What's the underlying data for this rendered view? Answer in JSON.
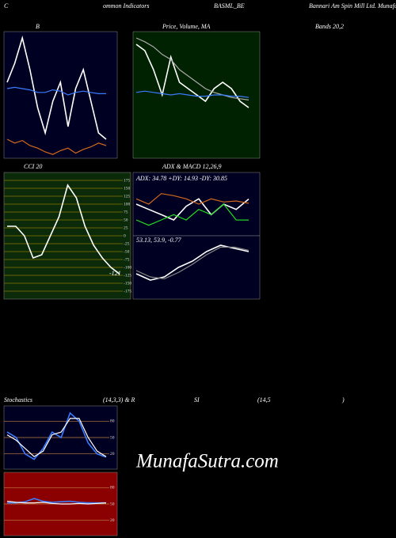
{
  "header": [
    "C",
    "ommon Indicators",
    "BASML_BE",
    "Bannari Am Spin Mill Ltd. MunafaSutra.com"
  ],
  "subheader": [
    "B",
    "Price, Volume, MA",
    "Bands 20,2"
  ],
  "stoch_header": [
    "Stochastics",
    "(14,3,3) & R",
    "SI",
    "(14,5",
    ")"
  ],
  "watermark": "MunafaSutra.com",
  "chart_data": [
    {
      "type": "line",
      "background": "#000022",
      "ylim": [
        0,
        100
      ],
      "series": [
        {
          "color": "#ffffff",
          "values": [
            60,
            75,
            95,
            70,
            40,
            20,
            45,
            60,
            25,
            55,
            70,
            45,
            20,
            15
          ]
        },
        {
          "color": "#3b7bff",
          "values": [
            55,
            56,
            55,
            54,
            52,
            52,
            54,
            53,
            50,
            52,
            53,
            52,
            51,
            51
          ]
        },
        {
          "color": "#d2691e",
          "values": [
            15,
            12,
            14,
            10,
            8,
            5,
            3,
            6,
            8,
            4,
            7,
            9,
            12,
            10
          ]
        }
      ]
    },
    {
      "type": "line",
      "background": "#002200",
      "ylim": [
        0,
        100
      ],
      "series": [
        {
          "color": "#ffffff",
          "values": [
            90,
            85,
            70,
            50,
            80,
            60,
            55,
            50,
            45,
            55,
            60,
            55,
            45,
            40
          ]
        },
        {
          "color": "#aaaaaa",
          "values": [
            95,
            92,
            88,
            82,
            78,
            70,
            65,
            60,
            55,
            52,
            50,
            48,
            47,
            46
          ]
        },
        {
          "color": "#3b7bff",
          "values": [
            52,
            53,
            52,
            51,
            50,
            51,
            50,
            49,
            49,
            50,
            50,
            49,
            49,
            48
          ]
        }
      ]
    },
    {
      "type": "line",
      "title": "CCI 20",
      "background": "#0a2a0a",
      "grid_color": "#8b7500",
      "ylim": [
        -200,
        200
      ],
      "yticks": [
        175,
        150,
        125,
        100,
        75,
        50,
        25,
        0,
        -25,
        -50,
        -75,
        -100,
        -125,
        -150,
        -175
      ],
      "annotations": [
        "-121"
      ],
      "series": [
        {
          "color": "#ffffff",
          "values": [
            30,
            30,
            0,
            -70,
            -60,
            0,
            60,
            160,
            120,
            30,
            -30,
            -70,
            -100,
            -121
          ]
        }
      ]
    },
    {
      "type": "line",
      "title": "ADX  & MACD 12,26,9",
      "background": "#000022",
      "ylim": [
        0,
        60
      ],
      "annotations": [
        "ADX: 34.78  +DY: 14.93 -DY: 30.85"
      ],
      "series": [
        {
          "color": "#ffffff",
          "values": [
            30,
            25,
            20,
            15,
            28,
            35,
            20,
            30,
            25,
            34.78
          ]
        },
        {
          "color": "#22dd22",
          "values": [
            15,
            10,
            15,
            20,
            15,
            25,
            20,
            30,
            15,
            14.93
          ]
        },
        {
          "color": "#d2691e",
          "values": [
            35,
            30,
            40,
            38,
            35,
            30,
            35,
            32,
            33,
            30.85
          ]
        }
      ]
    },
    {
      "type": "line",
      "background": "#000022",
      "ylim": [
        -80,
        20
      ],
      "annotations": [
        "53.13, 53.9, -0.77"
      ],
      "series": [
        {
          "color": "#ffffff",
          "values": [
            -40,
            -50,
            -45,
            -30,
            -20,
            -5,
            5,
            0,
            -5
          ]
        },
        {
          "color": "#888888",
          "values": [
            -35,
            -45,
            -48,
            -38,
            -25,
            -10,
            2,
            2,
            -3
          ]
        }
      ]
    },
    {
      "type": "line",
      "background": "#000022",
      "grid_color": "#c08040",
      "ylim": [
        -8,
        108
      ],
      "yticks": [
        80,
        50,
        20
      ],
      "series": [
        {
          "color": "#3b7bff",
          "values": [
            60,
            50,
            20,
            10,
            30,
            60,
            50,
            95,
            80,
            40,
            20,
            14
          ]
        },
        {
          "color": "#ffffff",
          "values": [
            55,
            45,
            30,
            15,
            25,
            55,
            60,
            85,
            85,
            50,
            25,
            15
          ]
        }
      ]
    },
    {
      "type": "line",
      "background": "#8b0000",
      "grid_color": "#c08040",
      "ylim": [
        -8,
        108
      ],
      "yticks": [
        80,
        50,
        20
      ],
      "series": [
        {
          "color": "#3b7bff",
          "values": [
            52,
            52,
            54,
            60,
            55,
            53,
            54,
            55,
            53,
            52,
            52,
            52
          ]
        },
        {
          "color": "#ffffff",
          "values": [
            55,
            53,
            52,
            52,
            53,
            51,
            50,
            50,
            51,
            50,
            51,
            52
          ]
        }
      ]
    }
  ]
}
